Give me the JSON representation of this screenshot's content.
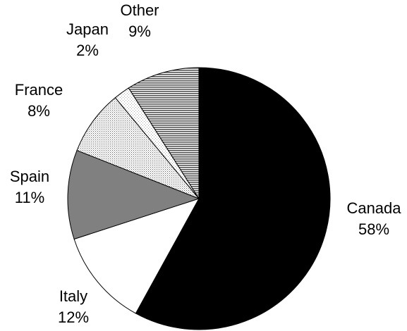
{
  "chart_data": {
    "type": "pie",
    "start": "12 o'clock",
    "direction": "clockwise",
    "legend": "none",
    "slices": [
      {
        "label": "Canada",
        "value": 58,
        "percent_label": "58%",
        "fill": "solid",
        "color": "#000000"
      },
      {
        "label": "Italy",
        "value": 12,
        "percent_label": "12%",
        "fill": "solid",
        "color": "#ffffff"
      },
      {
        "label": "Spain",
        "value": 11,
        "percent_label": "11%",
        "fill": "solid",
        "color": "#808080"
      },
      {
        "label": "France",
        "value": 8,
        "percent_label": "8%",
        "fill": "dotted",
        "color": "#d0d0d0"
      },
      {
        "label": "Japan",
        "value": 2,
        "percent_label": "2%",
        "fill": "dotted-light",
        "color": "#f0f0f0"
      },
      {
        "label": "Other",
        "value": 9,
        "percent_label": "9%",
        "fill": "horizontal-lines",
        "color": "#999999"
      }
    ]
  }
}
